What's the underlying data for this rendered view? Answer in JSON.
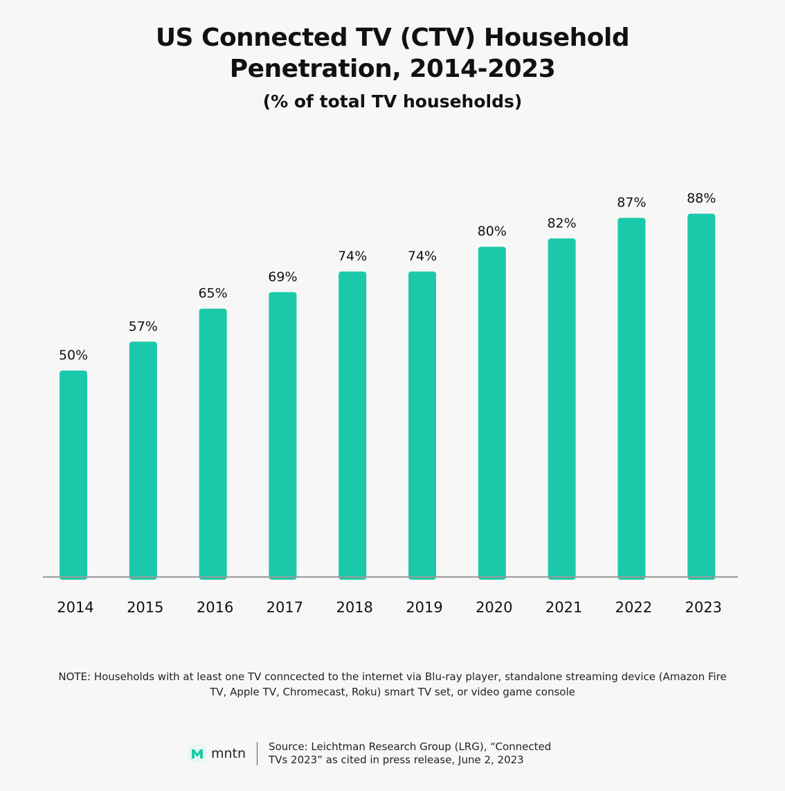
{
  "chart_data": {
    "type": "bar",
    "title": "US Connected TV (CTV) Household Penetration, 2014-2023",
    "subtitle": "(% of total TV households)",
    "categories": [
      "2014",
      "2015",
      "2016",
      "2017",
      "2018",
      "2019",
      "2020",
      "2021",
      "2022",
      "2023"
    ],
    "values": [
      50,
      57,
      65,
      69,
      74,
      74,
      80,
      82,
      87,
      88
    ],
    "data_labels": [
      "50%",
      "57%",
      "65%",
      "69%",
      "74%",
      "74%",
      "80%",
      "82%",
      "87%",
      "88%"
    ],
    "ylim": [
      0,
      100
    ],
    "grid": false,
    "bar_color": "#1bc9aa",
    "baseline_color": "#9a9a9a"
  },
  "note": "NOTE: Households with at least one TV conncected to the internet via Blu-ray player, standalone streaming device (Amazon Fire TV, Apple TV, Chromecast, Roku) smart TV set, or video game console",
  "footer": {
    "logo_text": "mntn",
    "logo_icon": "mntn-m-logo-icon",
    "logo_color": "#1bc9aa",
    "source_line1": "Source: Leichtman Research Group (LRG), “Connected",
    "source_line2": "TVs 2023” as cited in press release, June 2, 2023"
  }
}
